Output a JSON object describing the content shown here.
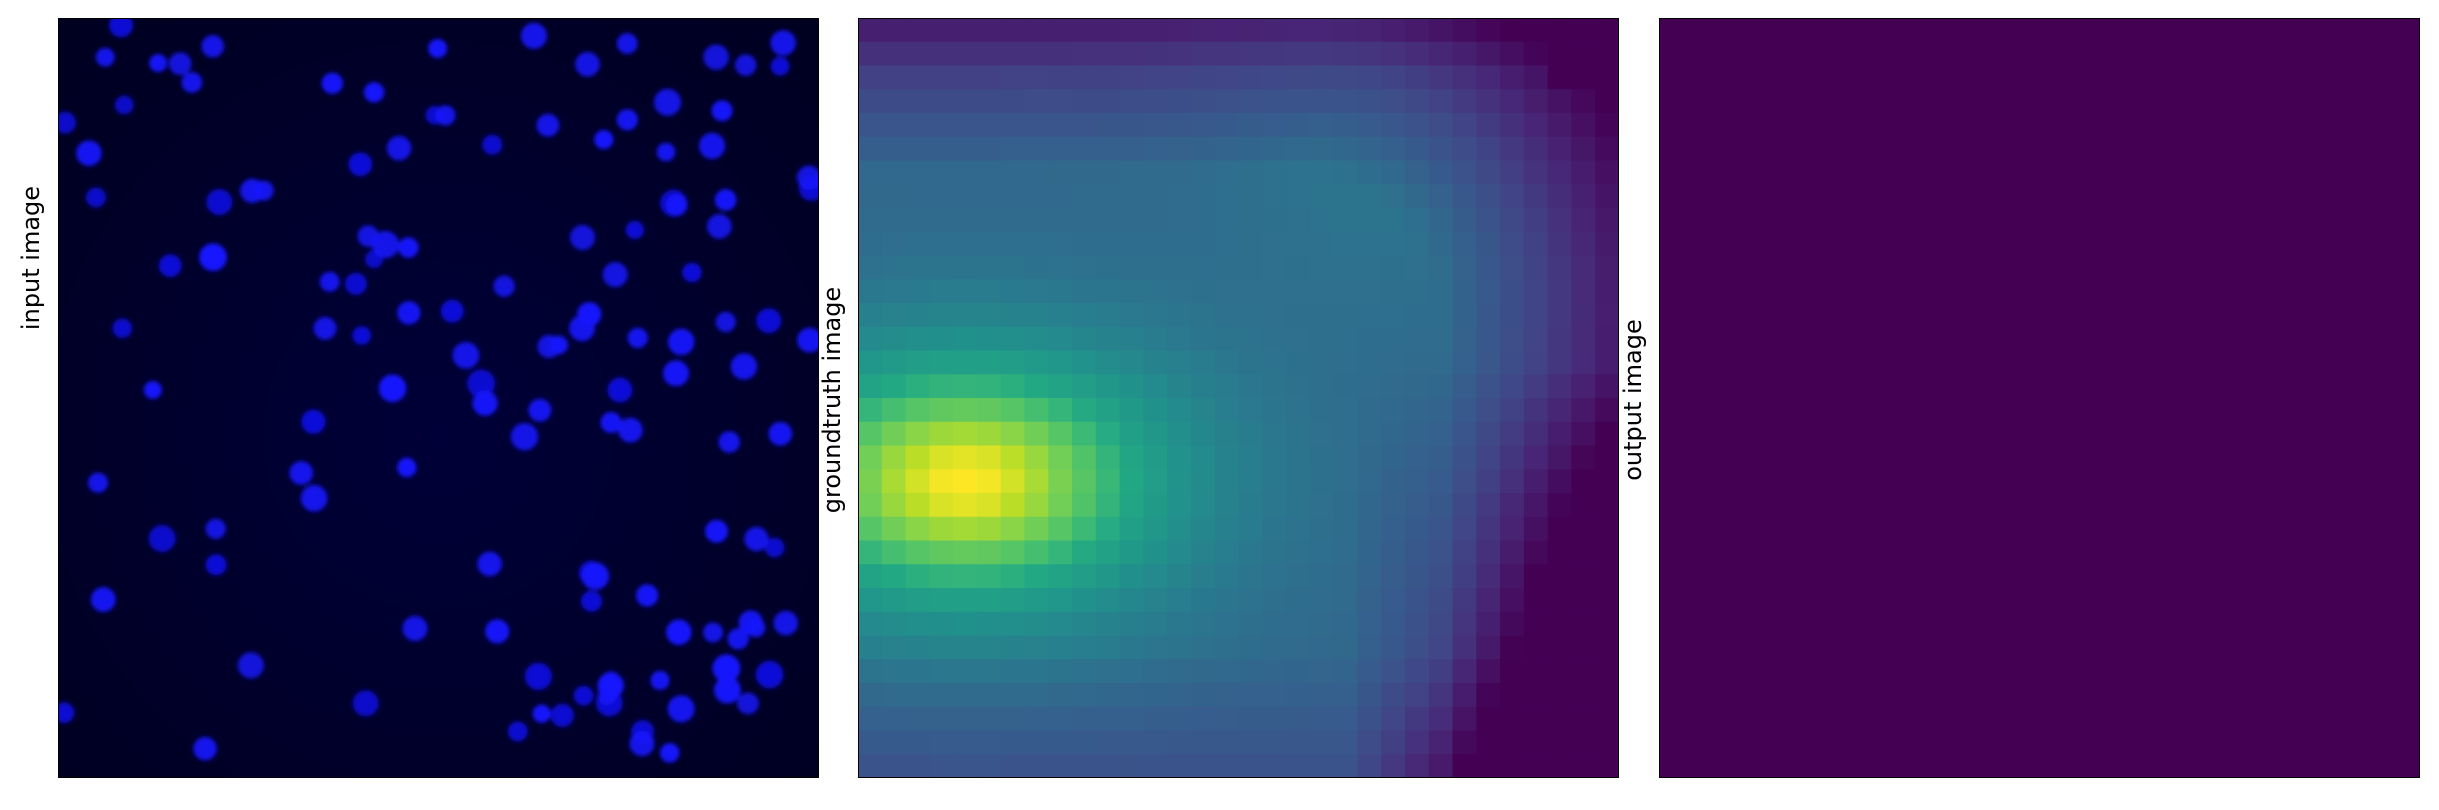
{
  "panels": [
    {
      "ylabel": "input image",
      "kind": "fluorescence"
    },
    {
      "ylabel": "groundtruth image",
      "kind": "heatmap"
    },
    {
      "ylabel": "output image",
      "kind": "uniform"
    }
  ],
  "colors": {
    "cell": "#1414ff",
    "input_background": "#00002e",
    "viridis_low": "#440154",
    "viridis_mid": "#21918c",
    "viridis_high": "#fde725",
    "output_fill": "#440154"
  },
  "chart_data": [
    {
      "type": "heatmap",
      "title": "",
      "ylabel": "input image",
      "xlabel": "",
      "ticks": "none",
      "description_values": {
        "blob_count_approx": 130
      }
    },
    {
      "type": "heatmap",
      "title": "",
      "ylabel": "groundtruth image",
      "xlabel": "",
      "ticks": "none",
      "colormap": "viridis",
      "grid": [
        32,
        32
      ],
      "peak_cell": [
        4,
        19
      ],
      "peak_value": 1.0
    },
    {
      "type": "heatmap",
      "title": "",
      "ylabel": "output image",
      "xlabel": "",
      "ticks": "none",
      "colormap": "viridis",
      "value": 0.0
    }
  ]
}
